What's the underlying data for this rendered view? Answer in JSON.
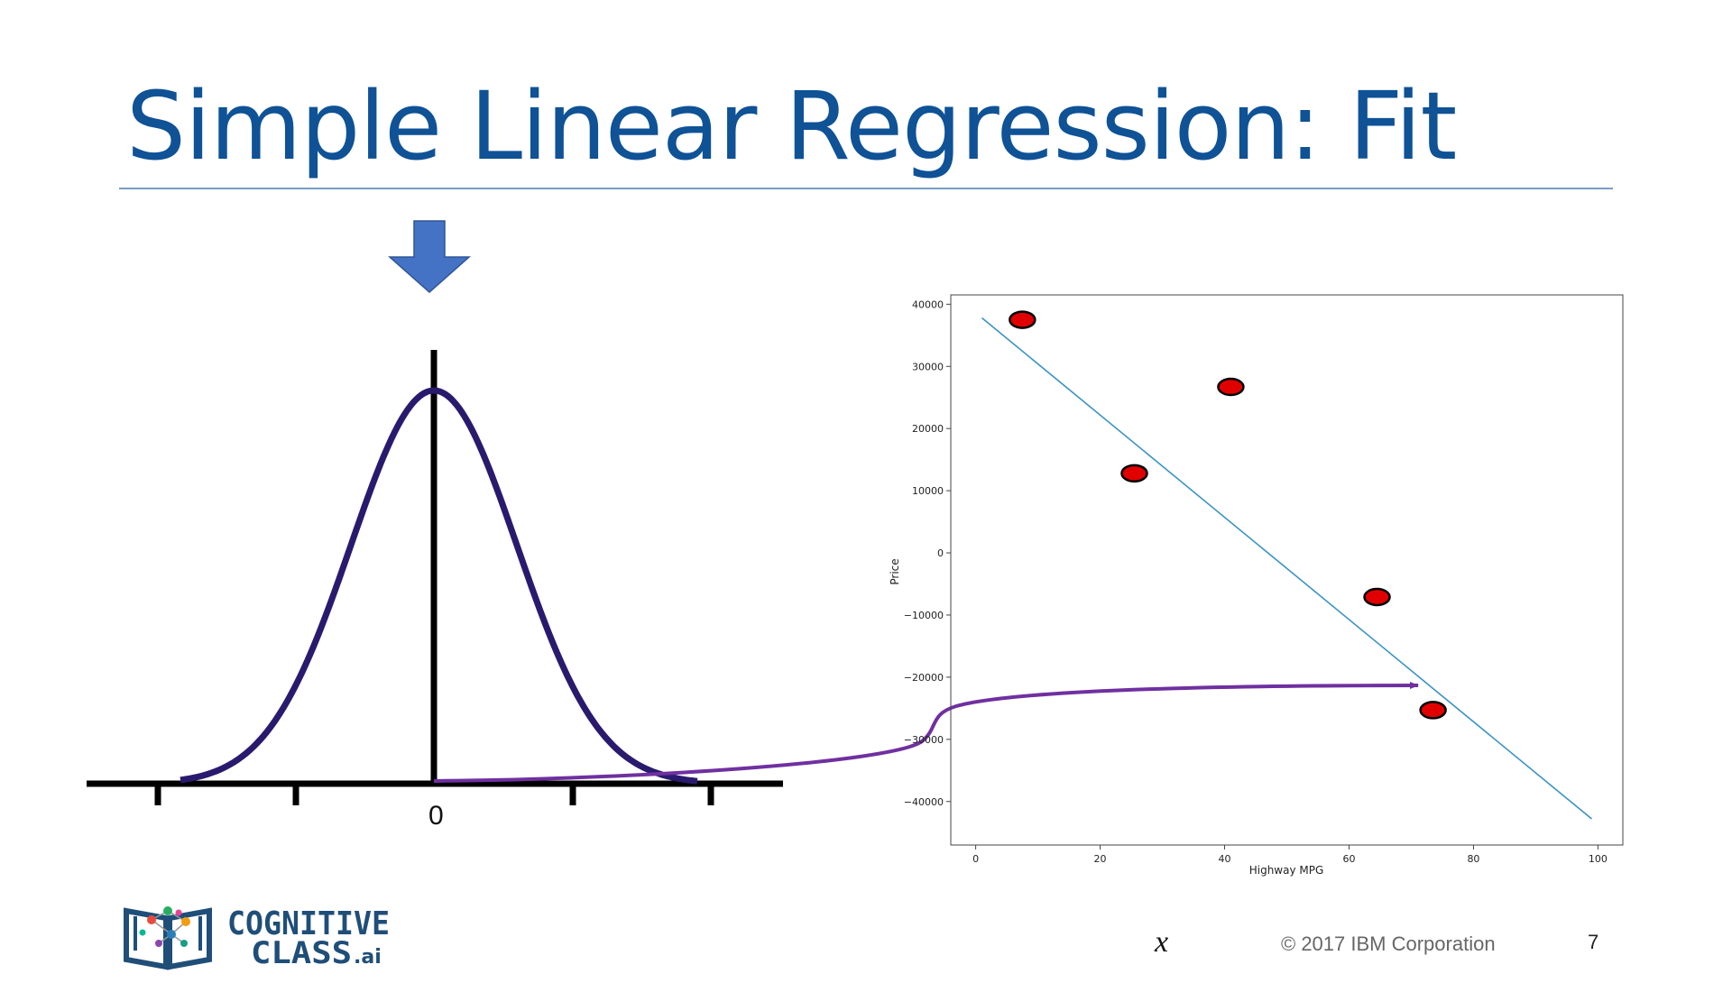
{
  "slide": {
    "title": "Simple Linear Regression: Fit",
    "copyright": "© 2017 IBM Corporation",
    "page_number": "7",
    "x_variable": "x",
    "logo": {
      "line1": "COGNITIVE",
      "line2": "CLASS",
      "suffix": ".ai",
      "color": "#1f4e79"
    }
  },
  "normal_curve": {
    "center_label": "0",
    "curve_color": "#2a1a6e",
    "arrow_color": "#4472c4",
    "connector_color": "#7030a0"
  },
  "chart_data": {
    "type": "scatter",
    "xlabel": "Highway MPG",
    "ylabel": "Price",
    "xlim": [
      -4,
      104
    ],
    "ylim": [
      -47000,
      41500
    ],
    "xticks": [
      0,
      20,
      40,
      60,
      80,
      100
    ],
    "yticks": [
      40000,
      30000,
      20000,
      10000,
      0,
      -10000,
      -20000,
      -30000,
      -40000
    ],
    "x_tick_labels": [
      "0",
      "20",
      "40",
      "60",
      "80",
      "100"
    ],
    "y_tick_labels": [
      "40000",
      "30000",
      "20000",
      "10000",
      "0",
      "−10000",
      "−20000",
      "−30000",
      "−40000"
    ],
    "points": [
      {
        "x": 7.5,
        "y": 37500
      },
      {
        "x": 25.5,
        "y": 12800
      },
      {
        "x": 41,
        "y": 26700
      },
      {
        "x": 64.5,
        "y": -7100
      },
      {
        "x": 73.5,
        "y": -25300
      }
    ],
    "fit_line": {
      "x": [
        1,
        99
      ],
      "y": [
        37800,
        -42800
      ]
    },
    "point_color": "#e00000",
    "line_color": "#3a93c3",
    "grid": false
  }
}
